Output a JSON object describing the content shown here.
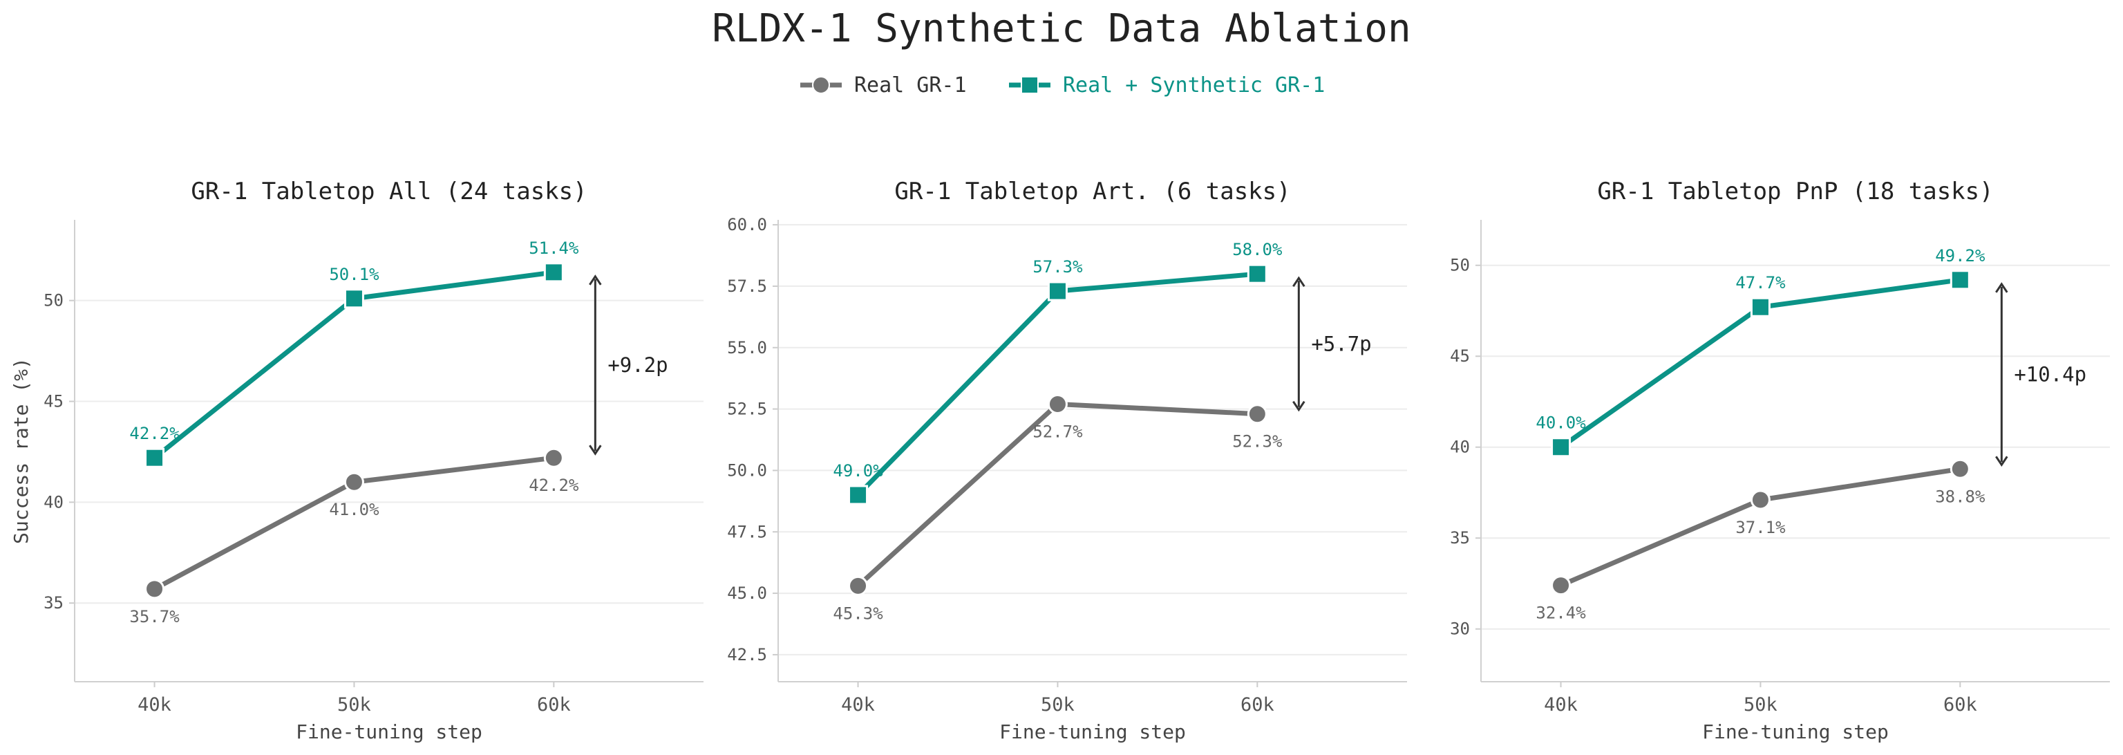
{
  "figure": {
    "title": "RLDX-1 Synthetic Data Ablation"
  },
  "legend": {
    "items": [
      {
        "name": "Real GR-1",
        "color": "#737373",
        "marker": "circle"
      },
      {
        "name": "Real + Synthetic GR-1",
        "color": "#0b9387",
        "marker": "square"
      }
    ]
  },
  "chart_data": [
    {
      "type": "line",
      "title": "GR-1 Tabletop All  (24 tasks)",
      "xlabel": "Fine-tuning step",
      "ylabel": "Success rate (%)",
      "categories": [
        "40k",
        "50k",
        "60k"
      ],
      "ylim": [
        31.1,
        54.0
      ],
      "yticks": [
        35,
        40,
        45,
        50
      ],
      "ytick_labels": [
        "35",
        "40",
        "45",
        "50"
      ],
      "series": [
        {
          "name": "Real GR-1",
          "values": [
            35.7,
            41.0,
            42.2
          ],
          "labels": [
            "35.7%",
            "41.0%",
            "42.2%"
          ]
        },
        {
          "name": "Real + Synthetic GR-1",
          "values": [
            42.2,
            50.1,
            51.4
          ],
          "labels": [
            "42.2%",
            "50.1%",
            "51.4%"
          ]
        }
      ],
      "gain": {
        "label": "+9.2p",
        "from": 42.2,
        "to": 51.4
      },
      "grid": "y"
    },
    {
      "type": "line",
      "title": "GR-1 Tabletop Art.  (6 tasks)",
      "xlabel": "Fine-tuning step",
      "ylabel": "",
      "categories": [
        "40k",
        "50k",
        "60k"
      ],
      "ylim": [
        41.4,
        60.2
      ],
      "yticks": [
        42.5,
        45.0,
        47.5,
        50.0,
        52.5,
        55.0,
        57.5,
        60.0
      ],
      "ytick_labels": [
        "42.5",
        "45.0",
        "47.5",
        "50.0",
        "52.5",
        "55.0",
        "57.5",
        "60.0"
      ],
      "series": [
        {
          "name": "Real GR-1",
          "values": [
            45.3,
            52.7,
            52.3
          ],
          "labels": [
            "45.3%",
            "52.7%",
            "52.3%"
          ]
        },
        {
          "name": "Real + Synthetic GR-1",
          "values": [
            49.0,
            57.3,
            58.0
          ],
          "labels": [
            "49.0%",
            "57.3%",
            "58.0%"
          ]
        }
      ],
      "gain": {
        "label": "+5.7p",
        "from": 52.3,
        "to": 58.0
      },
      "grid": "y"
    },
    {
      "type": "line",
      "title": "GR-1 Tabletop PnP  (18 tasks)",
      "xlabel": "Fine-tuning step",
      "ylabel": "",
      "categories": [
        "40k",
        "50k",
        "60k"
      ],
      "ylim": [
        27.1,
        52.5
      ],
      "yticks": [
        30,
        35,
        40,
        45,
        50
      ],
      "ytick_labels": [
        "30",
        "35",
        "40",
        "45",
        "50"
      ],
      "series": [
        {
          "name": "Real GR-1",
          "values": [
            32.4,
            37.1,
            38.8
          ],
          "labels": [
            "32.4%",
            "37.1%",
            "38.8%"
          ]
        },
        {
          "name": "Real + Synthetic GR-1",
          "values": [
            40.0,
            47.7,
            49.2
          ],
          "labels": [
            "40.0%",
            "47.7%",
            "49.2%"
          ]
        }
      ],
      "gain": {
        "label": "+10.4p",
        "from": 38.8,
        "to": 49.2
      },
      "grid": "y"
    }
  ]
}
